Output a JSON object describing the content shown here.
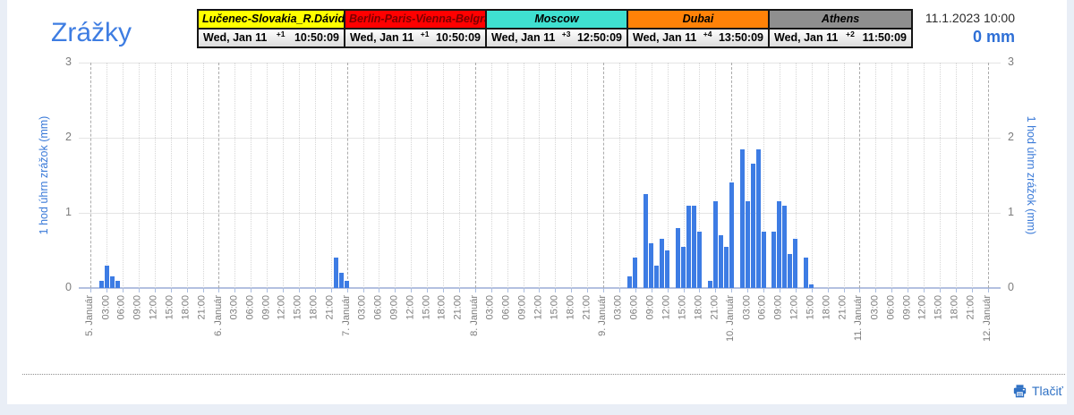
{
  "page": {
    "title": "Zrážky",
    "title_color": "#3e7de2",
    "datetime_label": "11.1.2023 10:00",
    "current_value": "0 mm",
    "current_value_color": "#2e6fd6",
    "print_label": "Tlačiť",
    "link_color": "#2f71c4"
  },
  "clocks": [
    {
      "name": "Lučenec-Slovakia_R.Dávid",
      "bg": "#ffff00",
      "fg": "#000000",
      "date": "Wed, Jan 11",
      "offset": "+1",
      "time": "10:50:09"
    },
    {
      "name": "Berlin-Paris-Vienna-Belgrade",
      "bg": "#ff0000",
      "fg": "#7a0000",
      "date": "Wed, Jan 11",
      "offset": "+1",
      "time": "10:50:09"
    },
    {
      "name": "Moscow",
      "bg": "#3fe0d0",
      "fg": "#000000",
      "date": "Wed, Jan 11",
      "offset": "+3",
      "time": "12:50:09"
    },
    {
      "name": "Dubai",
      "bg": "#ff8208",
      "fg": "#000000",
      "date": "Wed, Jan 11",
      "offset": "+4",
      "time": "13:50:09"
    },
    {
      "name": "Athens",
      "bg": "#8f8f8f",
      "fg": "#000000",
      "date": "Wed, Jan 11",
      "offset": "+2",
      "time": "11:50:09"
    }
  ],
  "chart_data": {
    "type": "bar",
    "title": "Zrážky",
    "ylabel_left": "1 hod úhrn zrážok (mm)",
    "ylabel_right": "1 hod úhrn zrážok (mm)",
    "ylim": [
      0,
      3
    ],
    "yticks": [
      0,
      1,
      2,
      3
    ],
    "grid": true,
    "bar_color": "#3d7ce4",
    "x_day_labels": [
      "5. Január",
      "6. Január",
      "7. Január",
      "8. Január",
      "9. Január",
      "10. Január",
      "11. Január",
      "12. Január"
    ],
    "x_time_labels": [
      "03:00",
      "06:00",
      "09:00",
      "12:00",
      "15:00",
      "18:00",
      "21:00"
    ],
    "points": [
      {
        "day": 5,
        "hour": 2,
        "value": 0.1
      },
      {
        "day": 5,
        "hour": 3,
        "value": 0.3
      },
      {
        "day": 5,
        "hour": 4,
        "value": 0.15
      },
      {
        "day": 5,
        "hour": 5,
        "value": 0.1
      },
      {
        "day": 6,
        "hour": 22,
        "value": 0.4
      },
      {
        "day": 6,
        "hour": 23,
        "value": 0.2
      },
      {
        "day": 7,
        "hour": 0,
        "value": 0.1
      },
      {
        "day": 9,
        "hour": 5,
        "value": 0.15
      },
      {
        "day": 9,
        "hour": 6,
        "value": 0.4
      },
      {
        "day": 9,
        "hour": 8,
        "value": 1.25
      },
      {
        "day": 9,
        "hour": 9,
        "value": 0.6
      },
      {
        "day": 9,
        "hour": 10,
        "value": 0.3
      },
      {
        "day": 9,
        "hour": 11,
        "value": 0.65
      },
      {
        "day": 9,
        "hour": 12,
        "value": 0.5
      },
      {
        "day": 9,
        "hour": 14,
        "value": 0.8
      },
      {
        "day": 9,
        "hour": 15,
        "value": 0.55
      },
      {
        "day": 9,
        "hour": 16,
        "value": 1.1
      },
      {
        "day": 9,
        "hour": 17,
        "value": 1.1
      },
      {
        "day": 9,
        "hour": 18,
        "value": 0.75
      },
      {
        "day": 9,
        "hour": 20,
        "value": 0.1
      },
      {
        "day": 9,
        "hour": 21,
        "value": 1.15
      },
      {
        "day": 9,
        "hour": 22,
        "value": 0.7
      },
      {
        "day": 9,
        "hour": 23,
        "value": 0.55
      },
      {
        "day": 10,
        "hour": 0,
        "value": 1.4
      },
      {
        "day": 10,
        "hour": 2,
        "value": 1.85
      },
      {
        "day": 10,
        "hour": 3,
        "value": 1.15
      },
      {
        "day": 10,
        "hour": 4,
        "value": 1.65
      },
      {
        "day": 10,
        "hour": 5,
        "value": 1.85
      },
      {
        "day": 10,
        "hour": 6,
        "value": 0.75
      },
      {
        "day": 10,
        "hour": 8,
        "value": 0.75
      },
      {
        "day": 10,
        "hour": 9,
        "value": 1.15
      },
      {
        "day": 10,
        "hour": 10,
        "value": 1.1
      },
      {
        "day": 10,
        "hour": 11,
        "value": 0.45
      },
      {
        "day": 10,
        "hour": 12,
        "value": 0.65
      },
      {
        "day": 10,
        "hour": 14,
        "value": 0.4
      },
      {
        "day": 10,
        "hour": 15,
        "value": 0.05
      }
    ]
  }
}
